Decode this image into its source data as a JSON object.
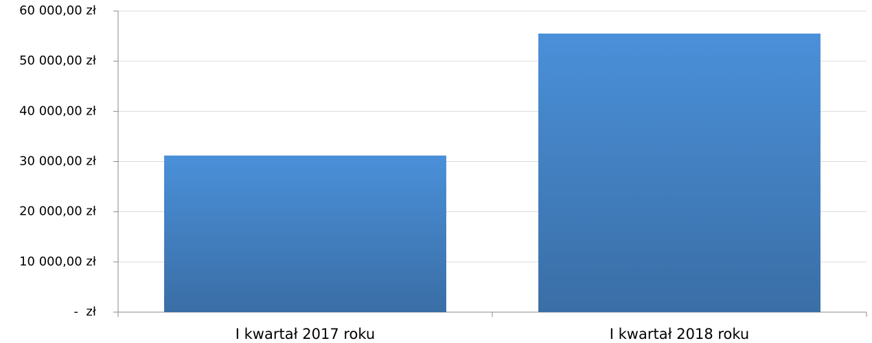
{
  "chart_data": {
    "type": "bar",
    "categories": [
      "I kwartał 2017 roku",
      "I kwartał 2018 roku"
    ],
    "values": [
      31200,
      55500
    ],
    "color": "#4a90d9",
    "ylim": [
      0,
      60000
    ],
    "yticks": [
      {
        "value": 0,
        "label": "-  zł"
      },
      {
        "value": 10000,
        "label": "10 000,00 zł"
      },
      {
        "value": 20000,
        "label": "20 000,00 zł"
      },
      {
        "value": 30000,
        "label": "30 000,00 zł"
      },
      {
        "value": 40000,
        "label": "40 000,00 zł"
      },
      {
        "value": 50000,
        "label": "50 000,00 zł"
      },
      {
        "value": 60000,
        "label": "60 000,00 zł"
      }
    ],
    "grid": true
  }
}
